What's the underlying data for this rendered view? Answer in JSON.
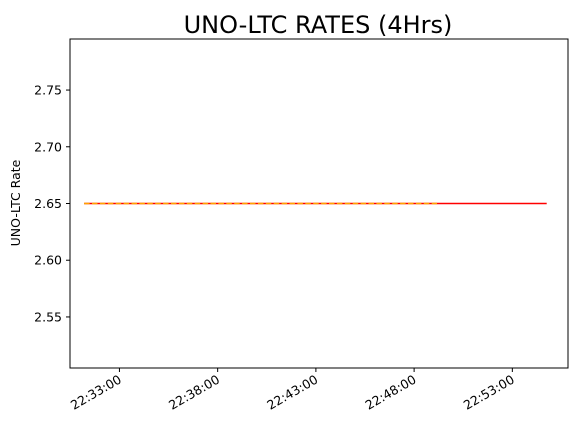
{
  "chart_data": {
    "type": "line",
    "title": "UNO-LTC RATES (4Hrs)",
    "xlabel": "",
    "ylabel": "UNO-LTC Rate",
    "x_ticks": [
      "22:33:00",
      "22:38:00",
      "22:43:00",
      "22:48:00",
      "22:53:00"
    ],
    "y_ticks": [
      "2.55",
      "2.60",
      "2.65",
      "2.70",
      "2.75"
    ],
    "ylim": [
      2.505,
      2.795
    ],
    "xlim": [
      "22:30:29",
      "22:55:50"
    ],
    "grid": false,
    "series": [
      {
        "color": "#ff0000",
        "style": "solid",
        "x": [
          "22:31:12",
          "22:54:45"
        ],
        "values": [
          2.65,
          2.65
        ]
      },
      {
        "color": "#ffa500",
        "style": "dashed",
        "x": [
          "22:31:12",
          "22:49:10"
        ],
        "values": [
          2.65,
          2.65
        ]
      }
    ]
  }
}
